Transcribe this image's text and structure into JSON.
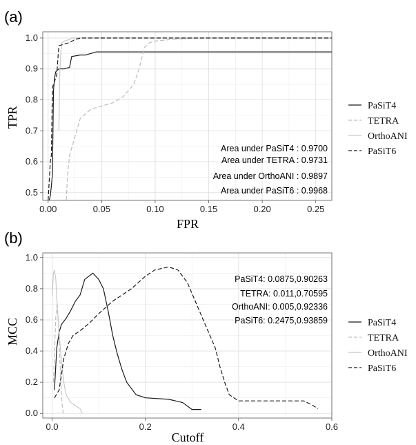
{
  "chart_data": [
    {
      "type": "line",
      "panel_label": "(a)",
      "xlabel": "FPR",
      "ylabel": "TPR",
      "xlim": [
        -0.005,
        0.265
      ],
      "ylim": [
        0.475,
        1.02
      ],
      "grid": true,
      "legend_position": "right",
      "xticks": [
        0.0,
        0.05,
        0.1,
        0.15,
        0.2,
        0.25
      ],
      "xtick_labels": [
        "0.00",
        "0.05",
        "0.10",
        "0.15",
        "0.20",
        "0.25"
      ],
      "yticks": [
        0.5,
        0.6,
        0.7,
        0.8,
        0.9,
        1.0
      ],
      "ytick_labels": [
        "0.5",
        "0.6",
        "0.7",
        "0.8",
        "0.9",
        "1.0"
      ],
      "annotations": [
        "Area under PaSiT4 : 0.9700",
        "Area under TETRA : 0.9731",
        "Area under OrthoANI : 0.9897",
        "Area under PaSiT6 : 0.9968"
      ],
      "series": [
        {
          "name": "PaSiT4",
          "style": "solid",
          "color": "#1a1a1a",
          "x": [
            0.001,
            0.002,
            0.003,
            0.004,
            0.005,
            0.006,
            0.007,
            0.01,
            0.015,
            0.02,
            0.022,
            0.03,
            0.035,
            0.045,
            0.1,
            0.2,
            0.265
          ],
          "y": [
            0.475,
            0.49,
            0.52,
            0.56,
            0.83,
            0.87,
            0.89,
            0.9,
            0.9,
            0.905,
            0.94,
            0.945,
            0.945,
            0.955,
            0.955,
            0.955,
            0.955
          ]
        },
        {
          "name": "TETRA",
          "style": "dashed",
          "color": "#bdbdbd",
          "x": [
            0.017,
            0.018,
            0.02,
            0.025,
            0.03,
            0.04,
            0.05,
            0.06,
            0.07,
            0.075,
            0.08,
            0.085,
            0.09,
            0.095,
            0.1,
            0.115,
            0.14,
            0.2,
            0.265
          ],
          "y": [
            0.475,
            0.55,
            0.62,
            0.68,
            0.74,
            0.77,
            0.78,
            0.79,
            0.81,
            0.83,
            0.85,
            0.9,
            0.97,
            0.985,
            0.99,
            0.995,
            1.0,
            1.0,
            1.0
          ]
        },
        {
          "name": "OrthoANI",
          "style": "solid",
          "color": "#c8c8c8",
          "x": [
            0.01,
            0.011,
            0.012,
            0.013,
            0.015,
            0.02,
            0.022,
            0.03,
            0.1,
            0.265
          ],
          "y": [
            0.7,
            0.9,
            0.96,
            0.985,
            0.99,
            0.995,
            1.0,
            1.0,
            1.0,
            1.0
          ]
        },
        {
          "name": "PaSiT6",
          "style": "dashed",
          "color": "#1a1a1a",
          "x": [
            0.0,
            0.002,
            0.003,
            0.004,
            0.005,
            0.006,
            0.008,
            0.01,
            0.015,
            0.02,
            0.025,
            0.03,
            0.1,
            0.265
          ],
          "y": [
            0.475,
            0.6,
            0.62,
            0.84,
            0.85,
            0.86,
            0.88,
            0.975,
            0.98,
            0.985,
            0.995,
            1.0,
            1.0,
            1.0
          ]
        }
      ]
    },
    {
      "type": "line",
      "panel_label": "(b)",
      "xlabel": "Cutoff",
      "ylabel": "MCC",
      "xlim": [
        -0.02,
        0.6
      ],
      "ylim": [
        -0.03,
        1.03
      ],
      "grid": true,
      "legend_position": "right",
      "xticks": [
        0.0,
        0.2,
        0.4,
        0.6
      ],
      "xtick_labels": [
        "0.0",
        "0.2",
        "0.4",
        "0.6"
      ],
      "yticks": [
        0.0,
        0.2,
        0.4,
        0.6,
        0.8,
        1.0
      ],
      "ytick_labels": [
        "0.0",
        "0.2",
        "0.4",
        "0.6",
        "0.8",
        "1.0"
      ],
      "annotations": [
        "PaSiT4: 0.0875,0.90263",
        "TETRA: 0.011,0.70595",
        "OrthoANI: 0.005,0.92336",
        "PaSiT6: 0.2475,0.93859"
      ],
      "series": [
        {
          "name": "PaSiT4",
          "style": "solid",
          "color": "#1a1a1a",
          "x": [
            0.005,
            0.01,
            0.015,
            0.02,
            0.03,
            0.04,
            0.05,
            0.06,
            0.07,
            0.0875,
            0.1,
            0.11,
            0.12,
            0.13,
            0.14,
            0.15,
            0.16,
            0.18,
            0.2,
            0.25,
            0.28,
            0.3,
            0.32
          ],
          "y": [
            0.15,
            0.42,
            0.52,
            0.57,
            0.61,
            0.66,
            0.72,
            0.76,
            0.86,
            0.9,
            0.86,
            0.8,
            0.66,
            0.5,
            0.38,
            0.28,
            0.2,
            0.12,
            0.1,
            0.09,
            0.07,
            0.025,
            0.025
          ]
        },
        {
          "name": "TETRA",
          "style": "dashed",
          "color": "#bdbdbd",
          "x": [
            0.003,
            0.005,
            0.008,
            0.011,
            0.014,
            0.017,
            0.02,
            0.022,
            0.024
          ],
          "y": [
            0.2,
            0.38,
            0.62,
            0.71,
            0.55,
            0.32,
            0.12,
            0.04,
            0.0
          ]
        },
        {
          "name": "OrthoANI",
          "style": "solid",
          "color": "#c8c8c8",
          "x": [
            0.0,
            0.003,
            0.005,
            0.008,
            0.01,
            0.013,
            0.017,
            0.02,
            0.025,
            0.03,
            0.04,
            0.05,
            0.06,
            0.065
          ],
          "y": [
            0.75,
            0.9,
            0.92,
            0.86,
            0.74,
            0.6,
            0.45,
            0.33,
            0.2,
            0.12,
            0.07,
            0.05,
            0.03,
            0.0
          ]
        },
        {
          "name": "PaSiT6",
          "style": "dashed",
          "color": "#1a1a1a",
          "x": [
            0.005,
            0.015,
            0.025,
            0.035,
            0.045,
            0.06,
            0.08,
            0.1,
            0.13,
            0.15,
            0.17,
            0.2,
            0.22,
            0.25,
            0.27,
            0.29,
            0.31,
            0.33,
            0.35,
            0.36,
            0.37,
            0.38,
            0.4,
            0.45,
            0.5,
            0.54,
            0.56,
            0.57
          ],
          "y": [
            0.1,
            0.15,
            0.35,
            0.45,
            0.5,
            0.53,
            0.58,
            0.64,
            0.72,
            0.76,
            0.8,
            0.88,
            0.92,
            0.94,
            0.92,
            0.84,
            0.7,
            0.56,
            0.42,
            0.3,
            0.2,
            0.12,
            0.08,
            0.08,
            0.08,
            0.08,
            0.05,
            0.03
          ]
        }
      ]
    }
  ]
}
